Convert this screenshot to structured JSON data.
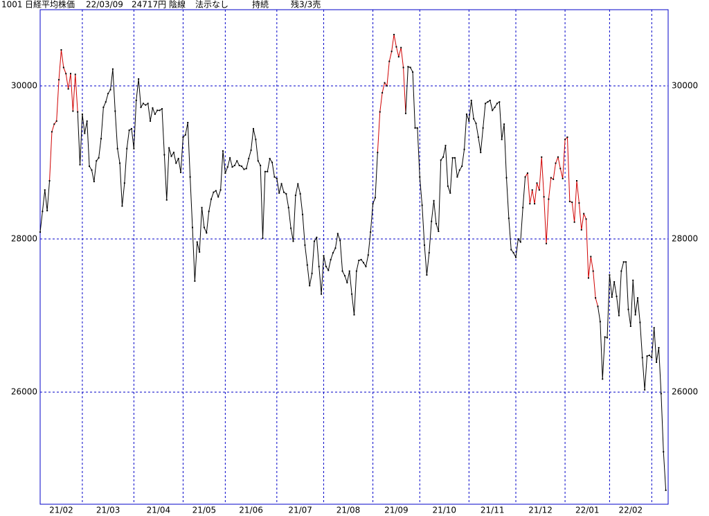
{
  "header": {
    "code": "1001",
    "name": "日経平均株価",
    "date": "22/03/09",
    "price": "24717円",
    "candle": "陰線",
    "method": "法示なし",
    "position": "持続",
    "remaining": "残3/3売"
  },
  "chart_data": {
    "type": "line",
    "values": [
      28090,
      28360,
      28640,
      28370,
      28760,
      29400,
      29500,
      29540,
      30080,
      30470,
      30240,
      30160,
      29960,
      30160,
      29670,
      30150,
      29660,
      28970,
      29630,
      29380,
      29540,
      28950,
      28900,
      28750,
      29020,
      29060,
      29310,
      29720,
      29790,
      29900,
      29950,
      30220,
      29670,
      29180,
      28990,
      28430,
      28730,
      29180,
      29420,
      29440,
      29180,
      29810,
      30090,
      29720,
      29770,
      29750,
      29770,
      29540,
      29710,
      29630,
      29680,
      29680,
      29700,
      29100,
      28510,
      29190,
      29080,
      29130,
      28990,
      29050,
      28870,
      29330,
      29360,
      29520,
      28810,
      28150,
      27450,
      27960,
      27830,
      28410,
      28150,
      28080,
      28360,
      28520,
      28610,
      28630,
      28550,
      28640,
      29150,
      28860,
      28940,
      29060,
      28940,
      28960,
      29020,
      28960,
      28950,
      28910,
      28920,
      29050,
      29160,
      29440,
      29300,
      29020,
      28960,
      28010,
      28880,
      28880,
      29050,
      29000,
      28810,
      28790,
      28600,
      28720,
      28610,
      28590,
      28410,
      28140,
      27970,
      28570,
      28720,
      28590,
      28320,
      27920,
      27660,
      27390,
      27550,
      27970,
      28020,
      27640,
      27280,
      27780,
      27640,
      27590,
      27730,
      27820,
      27880,
      28070,
      27980,
      27580,
      27520,
      27430,
      27580,
      27280,
      27010,
      27580,
      27720,
      27730,
      27690,
      27640,
      27790,
      28090,
      28460,
      28540,
      29130,
      29660,
      29910,
      30040,
      30000,
      30320,
      30450,
      30670,
      30510,
      30380,
      30500,
      30240,
      29640,
      30250,
      30240,
      30180,
      29450,
      29450,
      28810,
      28440,
      27920,
      27530,
      27820,
      28230,
      28500,
      28200,
      28100,
      29030,
      29070,
      29220,
      28690,
      28600,
      29060,
      29060,
      28810,
      28900,
      28950,
      29170,
      29630,
      29540,
      29810,
      29570,
      29510,
      29330,
      29130,
      29450,
      29770,
      29790,
      29810,
      29680,
      29720,
      29770,
      29790,
      29300,
      29500,
      28800,
      28270,
      27860,
      27820,
      27760,
      28000,
      27960,
      28410,
      28810,
      28860,
      28460,
      28640,
      28460,
      28730,
      28640,
      29070,
      28550,
      27940,
      28520,
      28800,
      28780,
      28990,
      29070,
      28920,
      28790,
      29300,
      29330,
      28490,
      28480,
      28220,
      28760,
      28470,
      28120,
      28330,
      28260,
      27490,
      27770,
      27580,
      27230,
      27120,
      26920,
      26170,
      26720,
      26710,
      27530,
      27240,
      27440,
      27250,
      27000,
      27580,
      27700,
      27700,
      27080,
      26860,
      27460,
      27010,
      27230,
      26910,
      26450,
      26030,
      26470,
      26480,
      26450,
      26840,
      26390,
      26580,
      25980,
      25220,
      24717
    ],
    "color": "#000000",
    "highlight_color": "#d00000",
    "highlight": [
      [
        4,
        16
      ],
      [
        144,
        156
      ],
      [
        207,
        238
      ]
    ],
    "xlim": [
      0,
      268
    ],
    "xticks": [
      18,
      40,
      61,
      79,
      101,
      121,
      142,
      162,
      183,
      203,
      224,
      243,
      261
    ],
    "month_labels": [
      "21/02",
      "21/03",
      "21/04",
      "21/05",
      "21/06",
      "21/07",
      "21/08",
      "21/09",
      "21/10",
      "21/11",
      "21/12",
      "22/01",
      "22/02"
    ],
    "ylim": [
      24535,
      30995
    ],
    "yticks": [
      26000,
      28000,
      30000
    ],
    "grid": true
  }
}
